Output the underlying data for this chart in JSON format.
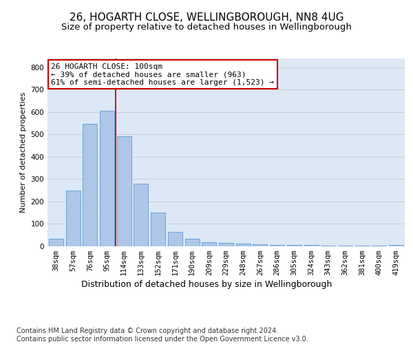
{
  "title1": "26, HOGARTH CLOSE, WELLINGBOROUGH, NN8 4UG",
  "title2": "Size of property relative to detached houses in Wellingborough",
  "xlabel": "Distribution of detached houses by size in Wellingborough",
  "ylabel": "Number of detached properties",
  "categories": [
    "38sqm",
    "57sqm",
    "76sqm",
    "95sqm",
    "114sqm",
    "133sqm",
    "152sqm",
    "171sqm",
    "190sqm",
    "209sqm",
    "229sqm",
    "248sqm",
    "267sqm",
    "286sqm",
    "305sqm",
    "324sqm",
    "343sqm",
    "362sqm",
    "381sqm",
    "400sqm",
    "419sqm"
  ],
  "values": [
    33,
    248,
    548,
    607,
    493,
    278,
    148,
    63,
    31,
    18,
    14,
    11,
    8,
    5,
    5,
    4,
    3,
    2,
    1,
    1,
    5
  ],
  "bar_color": "#aec6e8",
  "bar_edge_color": "#5b9bd5",
  "vline_x": 3.5,
  "vline_color": "#cc0000",
  "annotation_text": "26 HOGARTH CLOSE: 100sqm\n← 39% of detached houses are smaller (963)\n61% of semi-detached houses are larger (1,523) →",
  "annotation_box_color": "#ffffff",
  "annotation_box_edge_color": "#cc0000",
  "ylim": [
    0,
    840
  ],
  "yticks": [
    0,
    100,
    200,
    300,
    400,
    500,
    600,
    700,
    800
  ],
  "grid_color": "#cccccc",
  "bg_color": "#dce8f5",
  "footer_text": "Contains HM Land Registry data © Crown copyright and database right 2024.\nContains public sector information licensed under the Open Government Licence v3.0.",
  "title1_fontsize": 11,
  "title2_fontsize": 9.5,
  "xlabel_fontsize": 9,
  "ylabel_fontsize": 8,
  "tick_fontsize": 7.5,
  "footer_fontsize": 7,
  "ann_fontsize": 8
}
